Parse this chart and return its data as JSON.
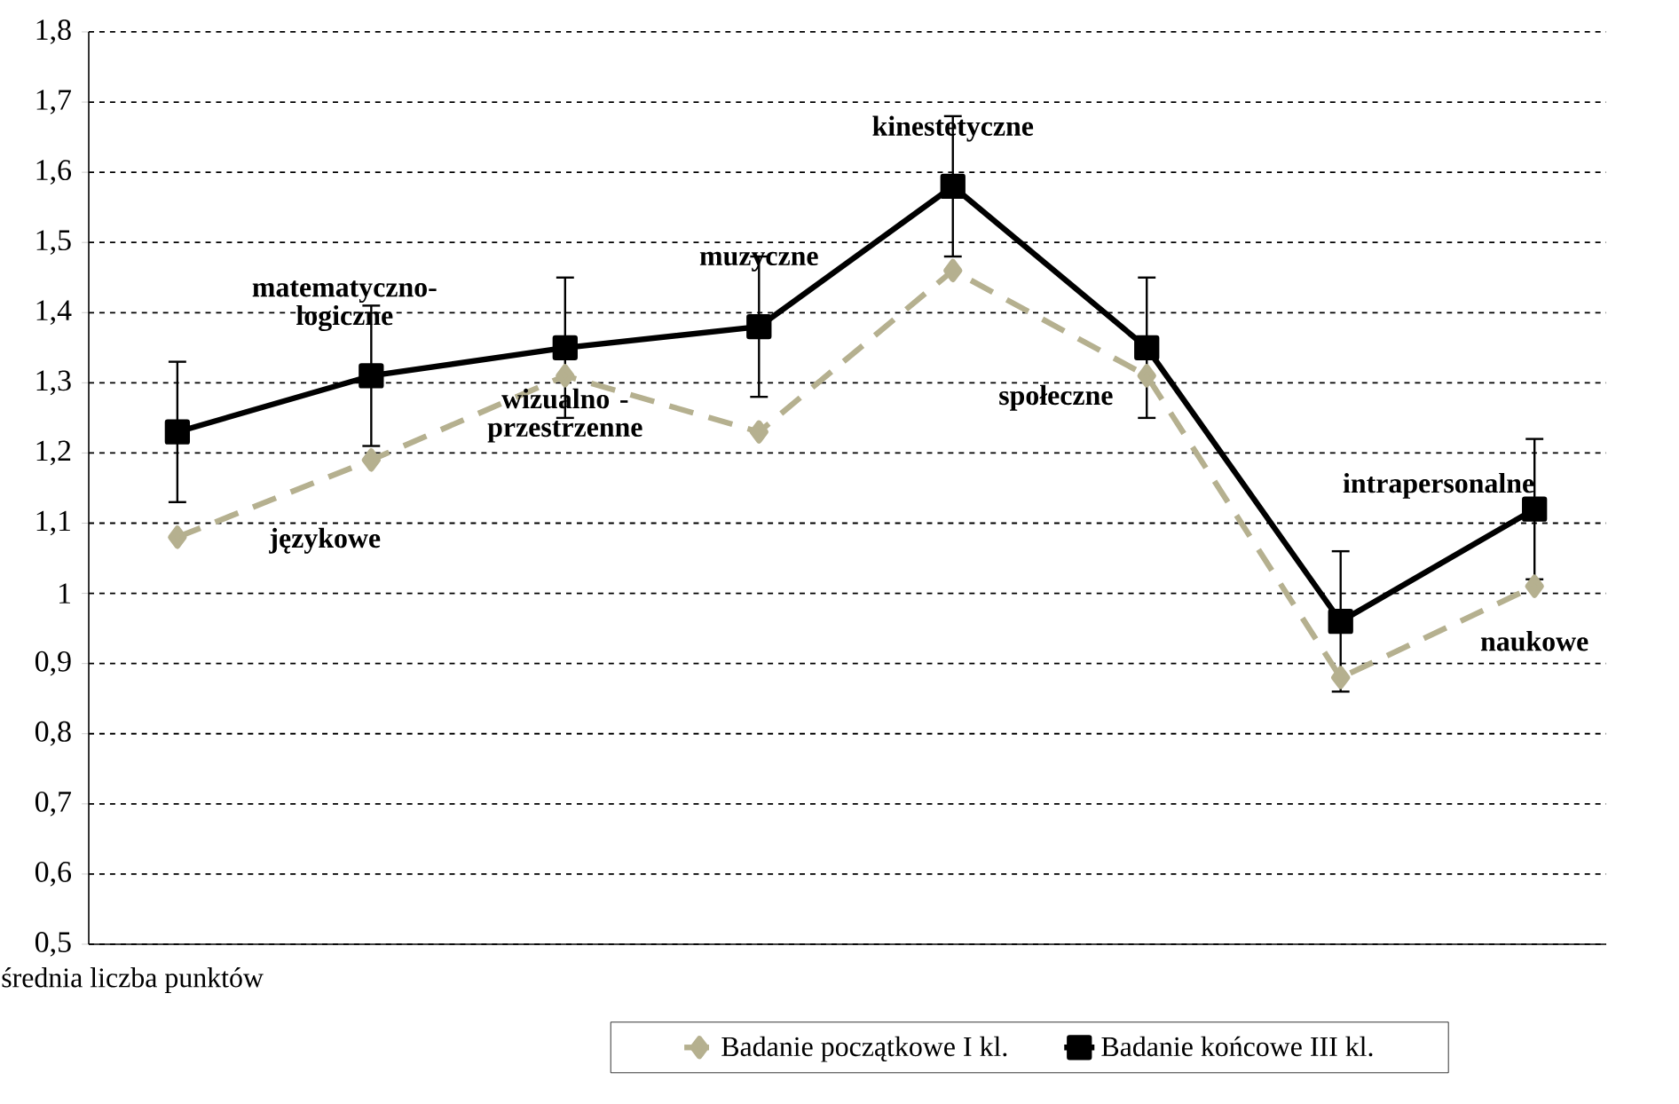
{
  "chart_data": {
    "type": "line",
    "categories": [
      null,
      null,
      null,
      null,
      null,
      null,
      null,
      null
    ],
    "annotations": [
      "językowe",
      "matematyczno-logiczne",
      "wizualno - przestrzenne",
      "muzyczne",
      "kinestetyczne",
      "społeczne",
      "intrapersonalne",
      "naukowe"
    ],
    "ylabel": "średnia liczba punktów",
    "tick_labels": "y",
    "ylim": [
      0.5,
      1.8
    ],
    "yticks": [
      {
        "value": 0.5,
        "label": "0,5"
      },
      {
        "value": 0.6,
        "label": "0,6"
      },
      {
        "value": 0.7,
        "label": "0,7"
      },
      {
        "value": 0.8,
        "label": "0,8"
      },
      {
        "value": 0.9,
        "label": "0,9"
      },
      1,
      {
        "value": 1.1,
        "label": "1,1"
      },
      {
        "value": 1.2,
        "label": "1,2"
      },
      {
        "value": 1.3,
        "label": "1,3"
      },
      {
        "value": 1.4,
        "label": "1,4"
      },
      {
        "value": 1.5,
        "label": "1,5"
      },
      {
        "value": 1.6,
        "label": "1,6"
      },
      {
        "value": 1.7,
        "label": "1,7"
      },
      {
        "value": 1.8,
        "label": "1,8"
      }
    ],
    "grid": "y",
    "legend": "bottom",
    "series": [
      {
        "name": "Badanie początkowe I kl.",
        "color": "#b5b08f",
        "marker": "diamond",
        "line_style": "dashed",
        "values": [
          1.08,
          1.19,
          1.31,
          1.23,
          1.46,
          1.31,
          0.88,
          1.01
        ]
      },
      {
        "name": "Badanie końcowe III kl.",
        "color": "#000000",
        "marker": "square",
        "line_style": "solid",
        "values": [
          1.23,
          1.31,
          1.35,
          1.38,
          1.58,
          1.35,
          0.96,
          1.12
        ],
        "errors": [
          0.1,
          0.1,
          0.1,
          0.1,
          0.1,
          0.1,
          0.1,
          0.1
        ]
      }
    ]
  }
}
